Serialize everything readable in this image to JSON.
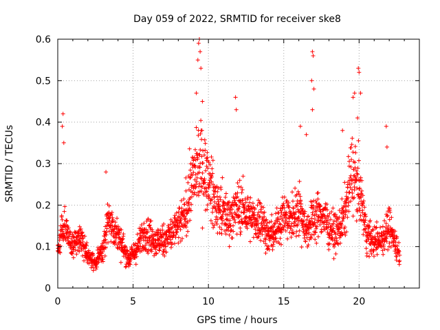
{
  "chart_data": {
    "type": "scatter",
    "title": "Day 059 of 2022, SRMTID for receiver ske8",
    "xlabel": "GPS time / hours",
    "ylabel": "SRMTID / TECUs",
    "xlim": [
      0,
      24
    ],
    "ylim": [
      0,
      0.6
    ],
    "xticks": [
      0,
      5,
      10,
      15,
      20
    ],
    "yticks": [
      0,
      0.1,
      0.2,
      0.3,
      0.4,
      0.5,
      0.6
    ],
    "xtick_labels": [
      "0",
      "5",
      "10",
      "15",
      "20"
    ],
    "ytick_labels": [
      "0",
      "0.1",
      "0.2",
      "0.3",
      "0.4",
      "0.5",
      "0.6"
    ],
    "grid": true,
    "marker": "+",
    "color": "#ff0000",
    "profile_hours": [
      0,
      0.2,
      0.5,
      1,
      1.5,
      2,
      2.5,
      3,
      3.3,
      3.8,
      4.2,
      4.7,
      5.2,
      5.8,
      6.5,
      7.2,
      7.8,
      8.4,
      9,
      9.5,
      10,
      10.5,
      11,
      11.5,
      12,
      12.5,
      13,
      13.5,
      14,
      14.5,
      15,
      15.5,
      16,
      16.5,
      17,
      17.5,
      18,
      18.5,
      19,
      19.5,
      20,
      20.5,
      21,
      21.5,
      22,
      22.7
    ],
    "profile_mean": [
      0.1,
      0.12,
      0.15,
      0.1,
      0.12,
      0.08,
      0.06,
      0.09,
      0.17,
      0.14,
      0.11,
      0.07,
      0.09,
      0.14,
      0.11,
      0.12,
      0.14,
      0.17,
      0.27,
      0.3,
      0.26,
      0.2,
      0.18,
      0.17,
      0.2,
      0.18,
      0.16,
      0.17,
      0.12,
      0.14,
      0.18,
      0.16,
      0.2,
      0.14,
      0.17,
      0.18,
      0.15,
      0.13,
      0.17,
      0.28,
      0.24,
      0.13,
      0.11,
      0.12,
      0.15,
      0.08
    ],
    "outliers": [
      {
        "x": 0.3,
        "y": 0.39
      },
      {
        "x": 0.35,
        "y": 0.42
      },
      {
        "x": 0.4,
        "y": 0.35
      },
      {
        "x": 3.2,
        "y": 0.28
      },
      {
        "x": 9.3,
        "y": 0.55
      },
      {
        "x": 9.35,
        "y": 0.59
      },
      {
        "x": 9.4,
        "y": 0.6
      },
      {
        "x": 9.45,
        "y": 0.57
      },
      {
        "x": 9.5,
        "y": 0.53
      },
      {
        "x": 9.2,
        "y": 0.47
      },
      {
        "x": 9.6,
        "y": 0.45
      },
      {
        "x": 11.8,
        "y": 0.46
      },
      {
        "x": 11.85,
        "y": 0.43
      },
      {
        "x": 16.1,
        "y": 0.39
      },
      {
        "x": 16.5,
        "y": 0.37
      },
      {
        "x": 16.9,
        "y": 0.57
      },
      {
        "x": 16.95,
        "y": 0.56
      },
      {
        "x": 16.85,
        "y": 0.5
      },
      {
        "x": 17.0,
        "y": 0.48
      },
      {
        "x": 16.9,
        "y": 0.43
      },
      {
        "x": 18.9,
        "y": 0.38
      },
      {
        "x": 19.6,
        "y": 0.46
      },
      {
        "x": 19.7,
        "y": 0.47
      },
      {
        "x": 19.95,
        "y": 0.53
      },
      {
        "x": 20.0,
        "y": 0.52
      },
      {
        "x": 20.1,
        "y": 0.47
      },
      {
        "x": 19.9,
        "y": 0.41
      },
      {
        "x": 21.8,
        "y": 0.39
      },
      {
        "x": 21.85,
        "y": 0.34
      }
    ]
  }
}
